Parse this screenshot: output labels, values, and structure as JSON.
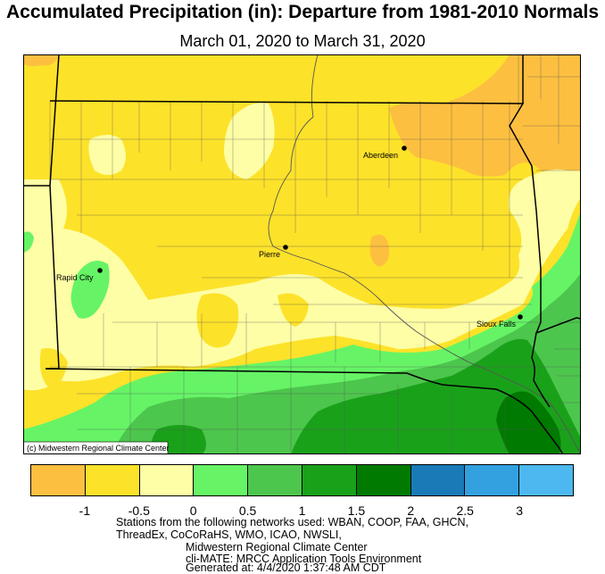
{
  "title": "Accumulated Precipitation (in): Departure from 1981-2010 Normals",
  "subtitle": "March 01, 2020 to March 31, 2020",
  "copyright": "(c) Midwestern Regional Climate Center",
  "cities": [
    {
      "name": "Aberdeen"
    },
    {
      "name": "Pierre"
    },
    {
      "name": "Rapid City"
    },
    {
      "name": "Sioux Falls"
    }
  ],
  "legend": {
    "colors": [
      "#fdbf40",
      "#fde22a",
      "#fefea6",
      "#66f466",
      "#4dc64d",
      "#1aa11a",
      "#007a00",
      "#1a7ab8",
      "#33a1e0",
      "#4db8f0"
    ],
    "ticks": [
      "-1",
      "-0.5",
      "0",
      "0.5",
      "1",
      "1.5",
      "2",
      "2.5",
      "3"
    ]
  },
  "footer": {
    "line1": "Stations from the following networks used: WBAN, COOP, FAA, GHCN,",
    "line2": "ThreadEx, CoCoRaHS, WMO, ICAO, NWSLI,",
    "line3": "Midwestern Regional Climate Center",
    "line4": "cli-MATE: MRCC Application Tools Environment",
    "line5": "Generated at: 4/4/2020 1:37:48 AM CDT"
  }
}
